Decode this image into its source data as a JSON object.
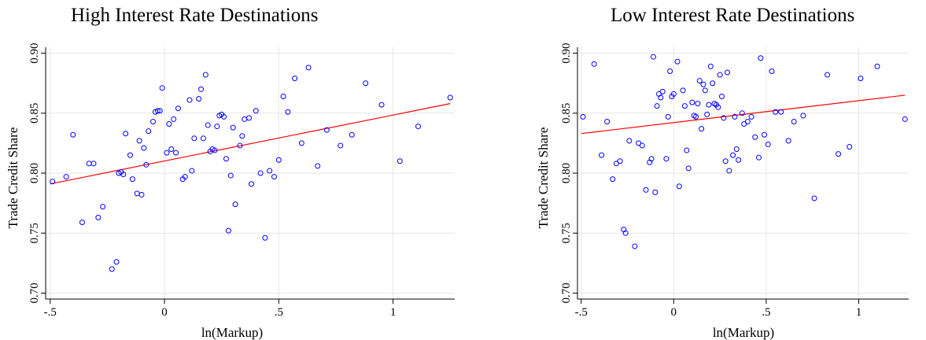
{
  "chart_data": [
    {
      "type": "scatter",
      "title": "High Interest Rate Destinations",
      "xlabel": "ln(Markup)",
      "ylabel": "Trade Credit Share",
      "xlim": [
        -0.52,
        1.27
      ],
      "ylim": [
        0.695,
        0.905
      ],
      "xticks": [
        {
          "v": -0.5,
          "label": "-.5"
        },
        {
          "v": 0,
          "label": "0"
        },
        {
          "v": 0.5,
          "label": ".5"
        },
        {
          "v": 1,
          "label": "1"
        }
      ],
      "yticks": [
        {
          "v": 0.7,
          "label": "0.70"
        },
        {
          "v": 0.75,
          "label": "0.75"
        },
        {
          "v": 0.8,
          "label": "0.80"
        },
        {
          "v": 0.85,
          "label": "0.85"
        },
        {
          "v": 0.9,
          "label": "0.90"
        }
      ],
      "grid": true,
      "marker_color": "#0000ff",
      "fit_color": "#ff0000",
      "fit_line": [
        [
          -0.5,
          0.791
        ],
        [
          1.25,
          0.858
        ]
      ],
      "points": [
        [
          -0.49,
          0.793
        ],
        [
          -0.43,
          0.797
        ],
        [
          -0.4,
          0.832
        ],
        [
          -0.36,
          0.759
        ],
        [
          -0.33,
          0.808
        ],
        [
          -0.31,
          0.808
        ],
        [
          -0.29,
          0.763
        ],
        [
          -0.27,
          0.772
        ],
        [
          -0.23,
          0.72
        ],
        [
          -0.21,
          0.726
        ],
        [
          -0.2,
          0.8
        ],
        [
          -0.19,
          0.801
        ],
        [
          -0.18,
          0.799
        ],
        [
          -0.17,
          0.833
        ],
        [
          -0.15,
          0.815
        ],
        [
          -0.14,
          0.795
        ],
        [
          -0.12,
          0.783
        ],
        [
          -0.11,
          0.827
        ],
        [
          -0.1,
          0.782
        ],
        [
          -0.09,
          0.821
        ],
        [
          -0.08,
          0.807
        ],
        [
          -0.07,
          0.835
        ],
        [
          -0.05,
          0.843
        ],
        [
          -0.04,
          0.851
        ],
        [
          -0.03,
          0.852
        ],
        [
          -0.02,
          0.852
        ],
        [
          -0.01,
          0.871
        ],
        [
          0.01,
          0.817
        ],
        [
          0.02,
          0.841
        ],
        [
          0.03,
          0.82
        ],
        [
          0.04,
          0.845
        ],
        [
          0.05,
          0.817
        ],
        [
          0.06,
          0.854
        ],
        [
          0.08,
          0.795
        ],
        [
          0.09,
          0.797
        ],
        [
          0.11,
          0.861
        ],
        [
          0.12,
          0.802
        ],
        [
          0.13,
          0.829
        ],
        [
          0.15,
          0.862
        ],
        [
          0.16,
          0.87
        ],
        [
          0.17,
          0.829
        ],
        [
          0.18,
          0.882
        ],
        [
          0.19,
          0.84
        ],
        [
          0.2,
          0.818
        ],
        [
          0.21,
          0.82
        ],
        [
          0.22,
          0.819
        ],
        [
          0.23,
          0.839
        ],
        [
          0.24,
          0.848
        ],
        [
          0.25,
          0.849
        ],
        [
          0.26,
          0.847
        ],
        [
          0.27,
          0.812
        ],
        [
          0.28,
          0.752
        ],
        [
          0.29,
          0.798
        ],
        [
          0.3,
          0.838
        ],
        [
          0.31,
          0.774
        ],
        [
          0.33,
          0.823
        ],
        [
          0.34,
          0.831
        ],
        [
          0.35,
          0.845
        ],
        [
          0.37,
          0.846
        ],
        [
          0.38,
          0.791
        ],
        [
          0.4,
          0.852
        ],
        [
          0.42,
          0.8
        ],
        [
          0.44,
          0.746
        ],
        [
          0.46,
          0.802
        ],
        [
          0.48,
          0.797
        ],
        [
          0.5,
          0.811
        ],
        [
          0.52,
          0.864
        ],
        [
          0.54,
          0.851
        ],
        [
          0.57,
          0.879
        ],
        [
          0.6,
          0.825
        ],
        [
          0.63,
          0.888
        ],
        [
          0.67,
          0.806
        ],
        [
          0.71,
          0.836
        ],
        [
          0.77,
          0.823
        ],
        [
          0.82,
          0.832
        ],
        [
          0.88,
          0.875
        ],
        [
          0.95,
          0.857
        ],
        [
          1.03,
          0.81
        ],
        [
          1.11,
          0.839
        ],
        [
          1.25,
          0.863
        ]
      ]
    },
    {
      "type": "scatter",
      "title": "Low Interest Rate Destinations",
      "xlabel": "ln(Markup)",
      "ylabel": "Trade Credit Share",
      "xlim": [
        -0.52,
        1.27
      ],
      "ylim": [
        0.695,
        0.905
      ],
      "xticks": [
        {
          "v": -0.5,
          "label": "-.5"
        },
        {
          "v": 0,
          "label": "0"
        },
        {
          "v": 0.5,
          "label": ".5"
        },
        {
          "v": 1,
          "label": "1"
        }
      ],
      "yticks": [
        {
          "v": 0.7,
          "label": "0.70"
        },
        {
          "v": 0.75,
          "label": "0.75"
        },
        {
          "v": 0.8,
          "label": "0.80"
        },
        {
          "v": 0.85,
          "label": "0.85"
        },
        {
          "v": 0.9,
          "label": "0.90"
        }
      ],
      "grid": true,
      "marker_color": "#0000ff",
      "fit_color": "#ff0000",
      "fit_line": [
        [
          -0.5,
          0.833
        ],
        [
          1.25,
          0.865
        ]
      ],
      "points": [
        [
          -0.49,
          0.847
        ],
        [
          -0.43,
          0.891
        ],
        [
          -0.39,
          0.815
        ],
        [
          -0.36,
          0.843
        ],
        [
          -0.33,
          0.795
        ],
        [
          -0.31,
          0.808
        ],
        [
          -0.29,
          0.81
        ],
        [
          -0.27,
          0.753
        ],
        [
          -0.26,
          0.75
        ],
        [
          -0.24,
          0.827
        ],
        [
          -0.21,
          0.739
        ],
        [
          -0.19,
          0.825
        ],
        [
          -0.17,
          0.823
        ],
        [
          -0.15,
          0.786
        ],
        [
          -0.13,
          0.809
        ],
        [
          -0.12,
          0.812
        ],
        [
          -0.11,
          0.897
        ],
        [
          -0.1,
          0.784
        ],
        [
          -0.09,
          0.856
        ],
        [
          -0.08,
          0.866
        ],
        [
          -0.07,
          0.863
        ],
        [
          -0.06,
          0.868
        ],
        [
          -0.04,
          0.812
        ],
        [
          -0.03,
          0.847
        ],
        [
          -0.02,
          0.885
        ],
        [
          -0.01,
          0.864
        ],
        [
          0.0,
          0.866
        ],
        [
          0.02,
          0.893
        ],
        [
          0.03,
          0.789
        ],
        [
          0.05,
          0.869
        ],
        [
          0.06,
          0.856
        ],
        [
          0.07,
          0.819
        ],
        [
          0.08,
          0.804
        ],
        [
          0.1,
          0.859
        ],
        [
          0.11,
          0.848
        ],
        [
          0.12,
          0.847
        ],
        [
          0.13,
          0.858
        ],
        [
          0.14,
          0.877
        ],
        [
          0.15,
          0.837
        ],
        [
          0.16,
          0.874
        ],
        [
          0.17,
          0.869
        ],
        [
          0.18,
          0.849
        ],
        [
          0.19,
          0.857
        ],
        [
          0.2,
          0.889
        ],
        [
          0.21,
          0.875
        ],
        [
          0.22,
          0.858
        ],
        [
          0.23,
          0.857
        ],
        [
          0.24,
          0.855
        ],
        [
          0.25,
          0.882
        ],
        [
          0.26,
          0.864
        ],
        [
          0.27,
          0.846
        ],
        [
          0.28,
          0.81
        ],
        [
          0.29,
          0.884
        ],
        [
          0.3,
          0.802
        ],
        [
          0.32,
          0.815
        ],
        [
          0.33,
          0.847
        ],
        [
          0.34,
          0.82
        ],
        [
          0.35,
          0.811
        ],
        [
          0.37,
          0.85
        ],
        [
          0.38,
          0.841
        ],
        [
          0.4,
          0.843
        ],
        [
          0.42,
          0.847
        ],
        [
          0.44,
          0.83
        ],
        [
          0.46,
          0.813
        ],
        [
          0.47,
          0.896
        ],
        [
          0.49,
          0.832
        ],
        [
          0.51,
          0.824
        ],
        [
          0.53,
          0.885
        ],
        [
          0.55,
          0.851
        ],
        [
          0.58,
          0.851
        ],
        [
          0.62,
          0.827
        ],
        [
          0.65,
          0.843
        ],
        [
          0.7,
          0.848
        ],
        [
          0.76,
          0.779
        ],
        [
          0.83,
          0.882
        ],
        [
          0.89,
          0.816
        ],
        [
          0.95,
          0.822
        ],
        [
          1.01,
          0.879
        ],
        [
          1.1,
          0.889
        ],
        [
          1.25,
          0.845
        ]
      ]
    }
  ]
}
